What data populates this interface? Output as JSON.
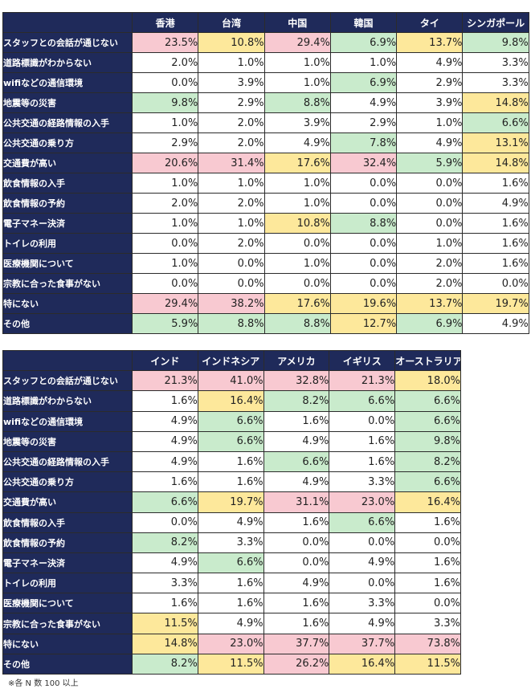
{
  "table1": {
    "columns": [
      "香港",
      "台湾",
      "中国",
      "韓国",
      "タイ",
      "シンガポール"
    ],
    "rows": [
      {
        "label": "スタッフとの会話が通じない",
        "values": [
          "23.5%",
          "10.8%",
          "29.4%",
          "6.9%",
          "13.7%",
          "9.8%"
        ],
        "colors": [
          "red",
          "yellow",
          "red",
          "green",
          "yellow",
          "green"
        ]
      },
      {
        "label": "道路標識がわからない",
        "values": [
          "2.0%",
          "1.0%",
          "1.0%",
          "1.0%",
          "4.9%",
          "3.3%"
        ],
        "colors": [
          "none",
          "none",
          "none",
          "none",
          "none",
          "none"
        ]
      },
      {
        "label": "wifiなどの通信環境",
        "values": [
          "0.0%",
          "3.9%",
          "1.0%",
          "6.9%",
          "2.9%",
          "3.3%"
        ],
        "colors": [
          "none",
          "none",
          "none",
          "green",
          "none",
          "none"
        ]
      },
      {
        "label": "地震等の災害",
        "values": [
          "9.8%",
          "2.9%",
          "8.8%",
          "4.9%",
          "3.9%",
          "14.8%"
        ],
        "colors": [
          "green",
          "none",
          "green",
          "none",
          "none",
          "yellow"
        ]
      },
      {
        "label": "公共交通の経路情報の入手",
        "values": [
          "1.0%",
          "2.0%",
          "3.9%",
          "2.9%",
          "1.0%",
          "6.6%"
        ],
        "colors": [
          "none",
          "none",
          "none",
          "none",
          "none",
          "green"
        ]
      },
      {
        "label": "公共交通の乗り方",
        "values": [
          "2.9%",
          "2.0%",
          "4.9%",
          "7.8%",
          "4.9%",
          "13.1%"
        ],
        "colors": [
          "none",
          "none",
          "none",
          "green",
          "none",
          "yellow"
        ]
      },
      {
        "label": "交通費が高い",
        "values": [
          "20.6%",
          "31.4%",
          "17.6%",
          "32.4%",
          "5.9%",
          "14.8%"
        ],
        "colors": [
          "red",
          "red",
          "yellow",
          "red",
          "green",
          "yellow"
        ]
      },
      {
        "label": "飲食情報の入手",
        "values": [
          "1.0%",
          "1.0%",
          "1.0%",
          "0.0%",
          "0.0%",
          "1.6%"
        ],
        "colors": [
          "none",
          "none",
          "none",
          "none",
          "none",
          "none"
        ]
      },
      {
        "label": "飲食情報の予約",
        "values": [
          "2.0%",
          "2.0%",
          "1.0%",
          "0.0%",
          "0.0%",
          "4.9%"
        ],
        "colors": [
          "none",
          "none",
          "none",
          "none",
          "none",
          "none"
        ]
      },
      {
        "label": "電子マネー決済",
        "values": [
          "1.0%",
          "1.0%",
          "10.8%",
          "8.8%",
          "0.0%",
          "1.6%"
        ],
        "colors": [
          "none",
          "none",
          "yellow",
          "green",
          "none",
          "none"
        ]
      },
      {
        "label": "トイレの利用",
        "values": [
          "0.0%",
          "2.0%",
          "0.0%",
          "0.0%",
          "1.0%",
          "1.6%"
        ],
        "colors": [
          "none",
          "none",
          "none",
          "none",
          "none",
          "none"
        ]
      },
      {
        "label": "医療機関について",
        "values": [
          "1.0%",
          "0.0%",
          "1.0%",
          "0.0%",
          "2.0%",
          "1.6%"
        ],
        "colors": [
          "none",
          "none",
          "none",
          "none",
          "none",
          "none"
        ]
      },
      {
        "label": "宗教に合った食事がない",
        "values": [
          "0.0%",
          "0.0%",
          "0.0%",
          "0.0%",
          "2.0%",
          "0.0%"
        ],
        "colors": [
          "none",
          "none",
          "none",
          "none",
          "none",
          "none"
        ]
      },
      {
        "label": "特にない",
        "values": [
          "29.4%",
          "38.2%",
          "17.6%",
          "19.6%",
          "13.7%",
          "19.7%"
        ],
        "colors": [
          "red",
          "red",
          "yellow",
          "yellow",
          "yellow",
          "yellow"
        ]
      },
      {
        "label": "その他",
        "values": [
          "5.9%",
          "8.8%",
          "8.8%",
          "12.7%",
          "6.9%",
          "4.9%"
        ],
        "colors": [
          "green",
          "green",
          "green",
          "yellow",
          "green",
          "none"
        ]
      }
    ]
  },
  "table2": {
    "columns": [
      "インド",
      "インドネシア",
      "アメリカ",
      "イギリス",
      "オーストラリア"
    ],
    "rows": [
      {
        "label": "スタッフとの会話が通じない",
        "values": [
          "21.3%",
          "41.0%",
          "32.8%",
          "21.3%",
          "18.0%"
        ],
        "colors": [
          "red",
          "red",
          "red",
          "red",
          "yellow"
        ]
      },
      {
        "label": "道路標識がわからない",
        "values": [
          "1.6%",
          "16.4%",
          "8.2%",
          "6.6%",
          "6.6%"
        ],
        "colors": [
          "none",
          "yellow",
          "green",
          "green",
          "green"
        ]
      },
      {
        "label": "wifiなどの通信環境",
        "values": [
          "4.9%",
          "6.6%",
          "1.6%",
          "0.0%",
          "6.6%"
        ],
        "colors": [
          "none",
          "green",
          "none",
          "none",
          "green"
        ]
      },
      {
        "label": "地震等の災害",
        "values": [
          "4.9%",
          "6.6%",
          "4.9%",
          "1.6%",
          "9.8%"
        ],
        "colors": [
          "none",
          "green",
          "none",
          "none",
          "green"
        ]
      },
      {
        "label": "公共交通の経路情報の入手",
        "values": [
          "4.9%",
          "1.6%",
          "6.6%",
          "1.6%",
          "8.2%"
        ],
        "colors": [
          "none",
          "none",
          "green",
          "none",
          "green"
        ]
      },
      {
        "label": "公共交通の乗り方",
        "values": [
          "1.6%",
          "1.6%",
          "4.9%",
          "3.3%",
          "6.6%"
        ],
        "colors": [
          "none",
          "none",
          "none",
          "none",
          "green"
        ]
      },
      {
        "label": "交通費が高い",
        "values": [
          "6.6%",
          "19.7%",
          "31.1%",
          "23.0%",
          "16.4%"
        ],
        "colors": [
          "green",
          "yellow",
          "red",
          "red",
          "yellow"
        ]
      },
      {
        "label": "飲食情報の入手",
        "values": [
          "0.0%",
          "4.9%",
          "1.6%",
          "6.6%",
          "1.6%"
        ],
        "colors": [
          "none",
          "none",
          "none",
          "green",
          "none"
        ]
      },
      {
        "label": "飲食情報の予約",
        "values": [
          "8.2%",
          "3.3%",
          "0.0%",
          "0.0%",
          "0.0%"
        ],
        "colors": [
          "green",
          "none",
          "none",
          "none",
          "none"
        ]
      },
      {
        "label": "電子マネー決済",
        "values": [
          "4.9%",
          "6.6%",
          "0.0%",
          "4.9%",
          "1.6%"
        ],
        "colors": [
          "none",
          "green",
          "none",
          "none",
          "none"
        ]
      },
      {
        "label": "トイレの利用",
        "values": [
          "3.3%",
          "1.6%",
          "4.9%",
          "0.0%",
          "1.6%"
        ],
        "colors": [
          "none",
          "none",
          "none",
          "none",
          "none"
        ]
      },
      {
        "label": "医療機関について",
        "values": [
          "1.6%",
          "1.6%",
          "1.6%",
          "3.3%",
          "0.0%"
        ],
        "colors": [
          "none",
          "none",
          "none",
          "none",
          "none"
        ]
      },
      {
        "label": "宗教に合った食事がない",
        "values": [
          "11.5%",
          "4.9%",
          "1.6%",
          "4.9%",
          "3.3%"
        ],
        "colors": [
          "yellow",
          "none",
          "none",
          "none",
          "none"
        ]
      },
      {
        "label": "特にない",
        "values": [
          "14.8%",
          "23.0%",
          "37.7%",
          "37.7%",
          "73.8%"
        ],
        "colors": [
          "yellow",
          "red",
          "red",
          "red",
          "red"
        ]
      },
      {
        "label": "その他",
        "values": [
          "8.2%",
          "11.5%",
          "26.2%",
          "16.4%",
          "11.5%"
        ],
        "colors": [
          "green",
          "yellow",
          "red",
          "yellow",
          "yellow"
        ]
      }
    ]
  },
  "colors": {
    "header": "#1f2a5a",
    "red": "#f8c9d1",
    "yellow": "#fde89b",
    "green": "#c9ebcc"
  },
  "footnote": "※各 N 数 100 以上"
}
